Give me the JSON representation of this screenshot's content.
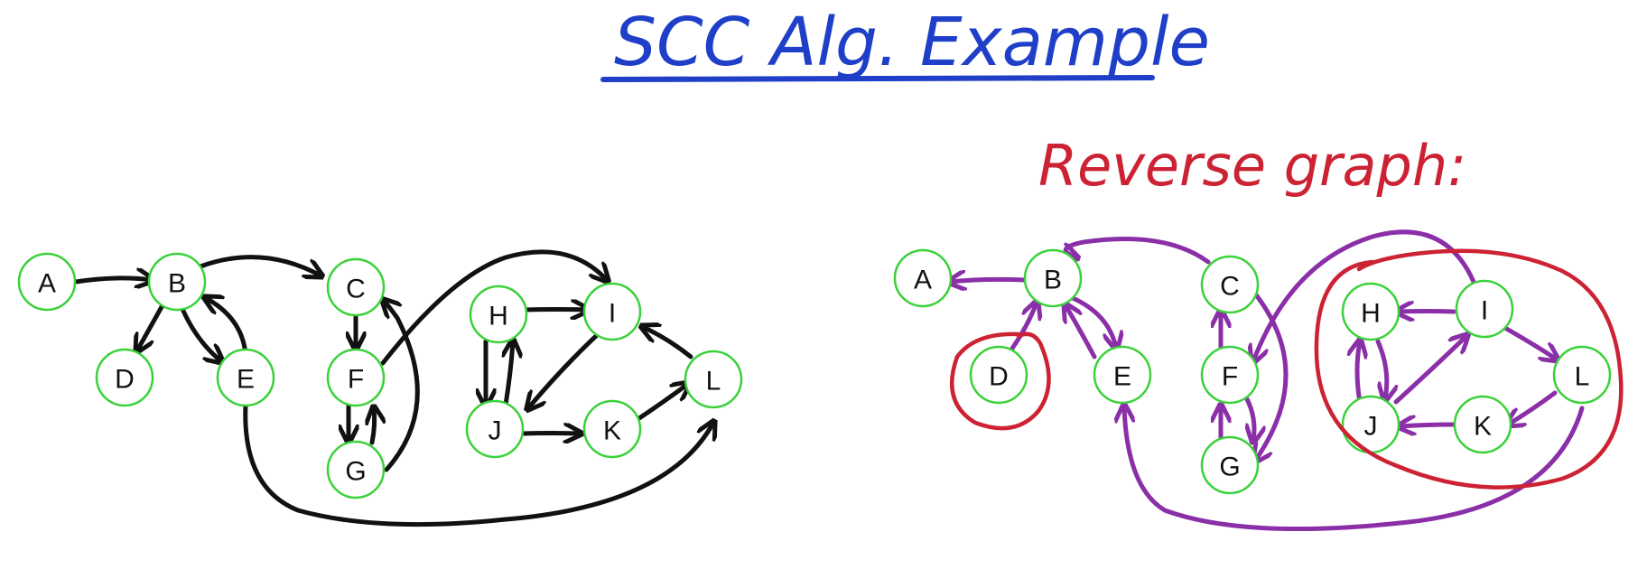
{
  "title": "SCC Alg. Example",
  "reverse_heading": "Reverse graph:",
  "colors": {
    "title": "#1f3fc9",
    "heading": "#cc2233",
    "node_ring": "#3ad13a",
    "original_edges": "#111111",
    "reverse_edges": "#8a2fa8",
    "scc_loops": "#cc2233"
  },
  "original_graph": {
    "nodes": [
      "A",
      "B",
      "C",
      "D",
      "E",
      "F",
      "G",
      "H",
      "I",
      "J",
      "K",
      "L"
    ],
    "edges": [
      [
        "A",
        "B"
      ],
      [
        "B",
        "C"
      ],
      [
        "B",
        "D"
      ],
      [
        "B",
        "E"
      ],
      [
        "E",
        "B"
      ],
      [
        "C",
        "F"
      ],
      [
        "F",
        "G"
      ],
      [
        "G",
        "F"
      ],
      [
        "G",
        "C"
      ],
      [
        "F",
        "I"
      ],
      [
        "H",
        "I"
      ],
      [
        "H",
        "J"
      ],
      [
        "J",
        "H"
      ],
      [
        "I",
        "J"
      ],
      [
        "J",
        "K"
      ],
      [
        "K",
        "L"
      ],
      [
        "L",
        "I"
      ],
      [
        "E",
        "L"
      ]
    ]
  },
  "reverse_graph": {
    "nodes": [
      "A",
      "B",
      "C",
      "D",
      "E",
      "F",
      "G",
      "H",
      "I",
      "J",
      "K",
      "L"
    ],
    "edges": [
      [
        "B",
        "A"
      ],
      [
        "C",
        "B"
      ],
      [
        "D",
        "B"
      ],
      [
        "E",
        "B"
      ],
      [
        "B",
        "E"
      ],
      [
        "F",
        "C"
      ],
      [
        "G",
        "F"
      ],
      [
        "F",
        "G"
      ],
      [
        "C",
        "G"
      ],
      [
        "I",
        "F"
      ],
      [
        "I",
        "H"
      ],
      [
        "J",
        "H"
      ],
      [
        "H",
        "J"
      ],
      [
        "J",
        "I"
      ],
      [
        "K",
        "J"
      ],
      [
        "L",
        "K"
      ],
      [
        "I",
        "L"
      ],
      [
        "L",
        "E"
      ]
    ],
    "circled_groups": [
      [
        "D"
      ],
      [
        "H",
        "I",
        "J",
        "K",
        "L"
      ]
    ]
  }
}
